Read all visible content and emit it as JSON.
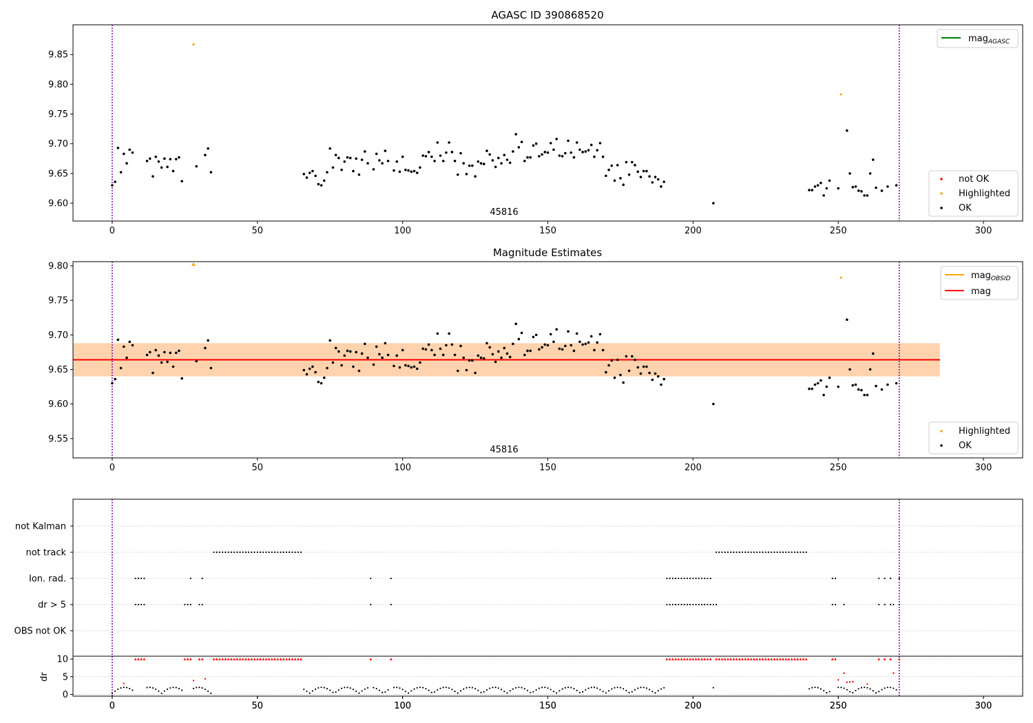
{
  "chart_data": [
    {
      "type": "scatter",
      "title": "AGASC ID 390868520",
      "xlim": [
        -13.5,
        313.5
      ],
      "ylim": [
        9.57,
        9.9
      ],
      "yticks": [
        9.6,
        9.65,
        9.7,
        9.75,
        9.8,
        9.85
      ],
      "xticks": [
        0,
        50,
        100,
        150,
        200,
        250,
        300
      ],
      "annotation": {
        "text": "45816",
        "x": 136,
        "y": 9.58
      },
      "vlines": [
        0,
        271
      ],
      "legend_lines": [
        {
          "label": "mag",
          "sub": "AGASC",
          "color": "#008000"
        }
      ],
      "legend_points": [
        {
          "label": "not OK",
          "color": "#ff0000"
        },
        {
          "label": "Highlighted",
          "color": "#ffa500"
        },
        {
          "label": "OK",
          "color": "#000000"
        }
      ],
      "highlighted": [
        [
          28,
          9.867
        ],
        [
          251,
          9.783
        ]
      ],
      "not_ok": [],
      "ok": [
        [
          0,
          9.63
        ],
        [
          1,
          9.636
        ],
        [
          2,
          9.693
        ],
        [
          3,
          9.652
        ],
        [
          4,
          9.683
        ],
        [
          5,
          9.667
        ],
        [
          6,
          9.69
        ],
        [
          7,
          9.685
        ],
        [
          12,
          9.671
        ],
        [
          13,
          9.675
        ],
        [
          14,
          9.645
        ],
        [
          15,
          9.678
        ],
        [
          16,
          9.67
        ],
        [
          17,
          9.66
        ],
        [
          18,
          9.675
        ],
        [
          19,
          9.661
        ],
        [
          20,
          9.674
        ],
        [
          21,
          9.654
        ],
        [
          22,
          9.674
        ],
        [
          23,
          9.677
        ],
        [
          24,
          9.637
        ],
        [
          29,
          9.662
        ],
        [
          32,
          9.681
        ],
        [
          33,
          9.692
        ],
        [
          34,
          9.652
        ],
        [
          66,
          9.649
        ],
        [
          67,
          9.643
        ],
        [
          68,
          9.651
        ],
        [
          69,
          9.654
        ],
        [
          70,
          9.646
        ],
        [
          71,
          9.632
        ],
        [
          72,
          9.63
        ],
        [
          73,
          9.638
        ],
        [
          74,
          9.652
        ],
        [
          75,
          9.692
        ],
        [
          76,
          9.66
        ],
        [
          77,
          9.681
        ],
        [
          78,
          9.676
        ],
        [
          79,
          9.656
        ],
        [
          80,
          9.67
        ],
        [
          81,
          9.677
        ],
        [
          82,
          9.676
        ],
        [
          83,
          9.654
        ],
        [
          84,
          9.675
        ],
        [
          85,
          9.648
        ],
        [
          86,
          9.673
        ],
        [
          87,
          9.687
        ],
        [
          88,
          9.667
        ],
        [
          90,
          9.657
        ],
        [
          91,
          9.683
        ],
        [
          92,
          9.672
        ],
        [
          93,
          9.667
        ],
        [
          94,
          9.688
        ],
        [
          95,
          9.671
        ],
        [
          97,
          9.655
        ],
        [
          98,
          9.67
        ],
        [
          99,
          9.653
        ],
        [
          100,
          9.678
        ],
        [
          101,
          9.656
        ],
        [
          102,
          9.655
        ],
        [
          103,
          9.653
        ],
        [
          104,
          9.654
        ],
        [
          105,
          9.651
        ],
        [
          106,
          9.66
        ],
        [
          107,
          9.68
        ],
        [
          108,
          9.679
        ],
        [
          109,
          9.686
        ],
        [
          110,
          9.678
        ],
        [
          111,
          9.671
        ],
        [
          112,
          9.702
        ],
        [
          113,
          9.68
        ],
        [
          114,
          9.671
        ],
        [
          115,
          9.685
        ],
        [
          116,
          9.702
        ],
        [
          117,
          9.686
        ],
        [
          118,
          9.671
        ],
        [
          119,
          9.648
        ],
        [
          120,
          9.684
        ],
        [
          121,
          9.667
        ],
        [
          122,
          9.649
        ],
        [
          123,
          9.663
        ],
        [
          124,
          9.663
        ],
        [
          125,
          9.645
        ],
        [
          126,
          9.67
        ],
        [
          127,
          9.667
        ],
        [
          128,
          9.666
        ],
        [
          129,
          9.688
        ],
        [
          130,
          9.682
        ],
        [
          131,
          9.672
        ],
        [
          132,
          9.661
        ],
        [
          133,
          9.676
        ],
        [
          134,
          9.667
        ],
        [
          135,
          9.681
        ],
        [
          136,
          9.673
        ],
        [
          137,
          9.668
        ],
        [
          138,
          9.687
        ],
        [
          139,
          9.716
        ],
        [
          140,
          9.694
        ],
        [
          141,
          9.703
        ],
        [
          142,
          9.671
        ],
        [
          143,
          9.677
        ],
        [
          144,
          9.677
        ],
        [
          145,
          9.697
        ],
        [
          146,
          9.7
        ],
        [
          147,
          9.679
        ],
        [
          148,
          9.682
        ],
        [
          149,
          9.686
        ],
        [
          150,
          9.685
        ],
        [
          151,
          9.701
        ],
        [
          152,
          9.69
        ],
        [
          153,
          9.708
        ],
        [
          154,
          9.68
        ],
        [
          155,
          9.679
        ],
        [
          156,
          9.684
        ],
        [
          157,
          9.705
        ],
        [
          158,
          9.685
        ],
        [
          159,
          9.677
        ],
        [
          160,
          9.702
        ],
        [
          161,
          9.69
        ],
        [
          162,
          9.686
        ],
        [
          163,
          9.687
        ],
        [
          164,
          9.689
        ],
        [
          165,
          9.698
        ],
        [
          166,
          9.678
        ],
        [
          167,
          9.689
        ],
        [
          168,
          9.701
        ],
        [
          169,
          9.678
        ],
        [
          170,
          9.646
        ],
        [
          171,
          9.656
        ],
        [
          172,
          9.663
        ],
        [
          173,
          9.638
        ],
        [
          174,
          9.664
        ],
        [
          175,
          9.642
        ],
        [
          176,
          9.631
        ],
        [
          177,
          9.669
        ],
        [
          178,
          9.648
        ],
        [
          179,
          9.669
        ],
        [
          180,
          9.664
        ],
        [
          181,
          9.653
        ],
        [
          182,
          9.644
        ],
        [
          183,
          9.654
        ],
        [
          184,
          9.654
        ],
        [
          185,
          9.645
        ],
        [
          186,
          9.635
        ],
        [
          187,
          9.644
        ],
        [
          188,
          9.64
        ],
        [
          189,
          9.628
        ],
        [
          190,
          9.636
        ],
        [
          207,
          9.6
        ],
        [
          240,
          9.622
        ],
        [
          241,
          9.622
        ],
        [
          242,
          9.628
        ],
        [
          243,
          9.63
        ],
        [
          244,
          9.634
        ],
        [
          245,
          9.613
        ],
        [
          246,
          9.625
        ],
        [
          247,
          9.638
        ],
        [
          250,
          9.625
        ],
        [
          253,
          9.722
        ],
        [
          254,
          9.65
        ],
        [
          255,
          9.627
        ],
        [
          256,
          9.628
        ],
        [
          257,
          9.621
        ],
        [
          258,
          9.62
        ],
        [
          259,
          9.613
        ],
        [
          260,
          9.613
        ],
        [
          261,
          9.65
        ],
        [
          262,
          9.673
        ],
        [
          263,
          9.626
        ],
        [
          265,
          9.621
        ],
        [
          267,
          9.628
        ],
        [
          270,
          9.63
        ]
      ]
    },
    {
      "type": "scatter",
      "title": "Magnitude Estimates",
      "xlim": [
        -13.5,
        313.5
      ],
      "ylim": [
        9.522,
        9.806
      ],
      "yticks": [
        9.55,
        9.6,
        9.65,
        9.7,
        9.75,
        9.8
      ],
      "xticks": [
        0,
        50,
        100,
        150,
        200,
        250,
        300
      ],
      "annotation": {
        "text": "45816",
        "x": 136,
        "y": 9.53
      },
      "vlines": [
        0,
        271
      ],
      "mag_line": {
        "value": 9.664,
        "xrange": [
          -13.5,
          285
        ],
        "color": "#ff0000"
      },
      "obsid_line": {
        "value": 9.664,
        "xrange": [
          -13.5,
          285
        ],
        "color": "#ffa500"
      },
      "band_pink": {
        "range": [
          9.64,
          9.688
        ],
        "xrange": [
          -13.5,
          285
        ]
      },
      "band_orange": {
        "range": [
          9.64,
          9.688
        ],
        "xrange": [
          -13.5,
          285
        ]
      },
      "legend_lines": [
        {
          "label": "mag",
          "sub": "OBSID",
          "color": "#ffa500"
        },
        {
          "label": "mag",
          "sub": "",
          "color": "#ff0000"
        }
      ],
      "legend_points": [
        {
          "label": "Highlighted",
          "color": "#ffa500"
        },
        {
          "label": "OK",
          "color": "#000000"
        }
      ],
      "highlighted": [
        [
          28,
          9.803
        ],
        [
          251,
          9.783
        ]
      ],
      "ok_ref": "same_as_panel_1"
    },
    {
      "type": "scatter",
      "categories": [
        "not Kalman",
        "not track",
        "Ion. rad.",
        "dr > 5",
        "OBS not OK"
      ],
      "xlim": [
        -13.5,
        313.5
      ],
      "xticks": [
        0,
        50,
        100,
        150,
        200,
        250,
        300
      ],
      "vlines": [
        0,
        271
      ],
      "flags": {
        "not track": [
          [
            35,
            65
          ],
          [
            208,
            239
          ]
        ],
        "Ion. rad.": [
          [
            8,
            11
          ],
          [
            27,
            27
          ],
          [
            31,
            31
          ],
          [
            89,
            89
          ],
          [
            96,
            96
          ],
          [
            191,
            206
          ],
          [
            248,
            249
          ],
          [
            264,
            264
          ],
          [
            266,
            266
          ],
          [
            268,
            268
          ],
          [
            271,
            271
          ]
        ],
        "dr > 5": [
          [
            8,
            11
          ],
          [
            25,
            27
          ],
          [
            30,
            31
          ],
          [
            89,
            89
          ],
          [
            96,
            96
          ],
          [
            191,
            208
          ],
          [
            248,
            249
          ],
          [
            252,
            252
          ],
          [
            264,
            264
          ],
          [
            266,
            266
          ],
          [
            268,
            269
          ],
          [
            271,
            271
          ]
        ]
      }
    },
    {
      "type": "scatter",
      "ylabel": "dr",
      "yticks": [
        0,
        5,
        10
      ],
      "ylim": [
        -0.5,
        10.8
      ],
      "xlim": [
        -13.5,
        313.5
      ],
      "xticks": [
        0,
        50,
        100,
        150,
        200,
        250,
        300
      ],
      "vlines": [
        0,
        271
      ],
      "capped_value": 10,
      "capped": [
        [
          8,
          11
        ],
        [
          25,
          27
        ],
        [
          30,
          31
        ],
        [
          35,
          65
        ],
        [
          89,
          89
        ],
        [
          96,
          96
        ],
        [
          191,
          206
        ],
        [
          208,
          239
        ],
        [
          248,
          249
        ],
        [
          264,
          264
        ],
        [
          266,
          266
        ],
        [
          268,
          268
        ],
        [
          271,
          271
        ]
      ],
      "red_low": [
        [
          4,
          3.1
        ],
        [
          28,
          3.9
        ],
        [
          32,
          4.4
        ],
        [
          252,
          6.0
        ],
        [
          253,
          3.4
        ],
        [
          254,
          3.5
        ],
        [
          255,
          3.6
        ],
        [
          260,
          2.9
        ],
        [
          269,
          6.0
        ],
        [
          250,
          4.1
        ]
      ],
      "black_ranges": [
        [
          0,
          7
        ],
        [
          12,
          24
        ],
        [
          28,
          34
        ],
        [
          66,
          88
        ],
        [
          90,
          95
        ],
        [
          97,
          190
        ],
        [
          207,
          207
        ],
        [
          240,
          247
        ],
        [
          250,
          270
        ]
      ]
    }
  ]
}
